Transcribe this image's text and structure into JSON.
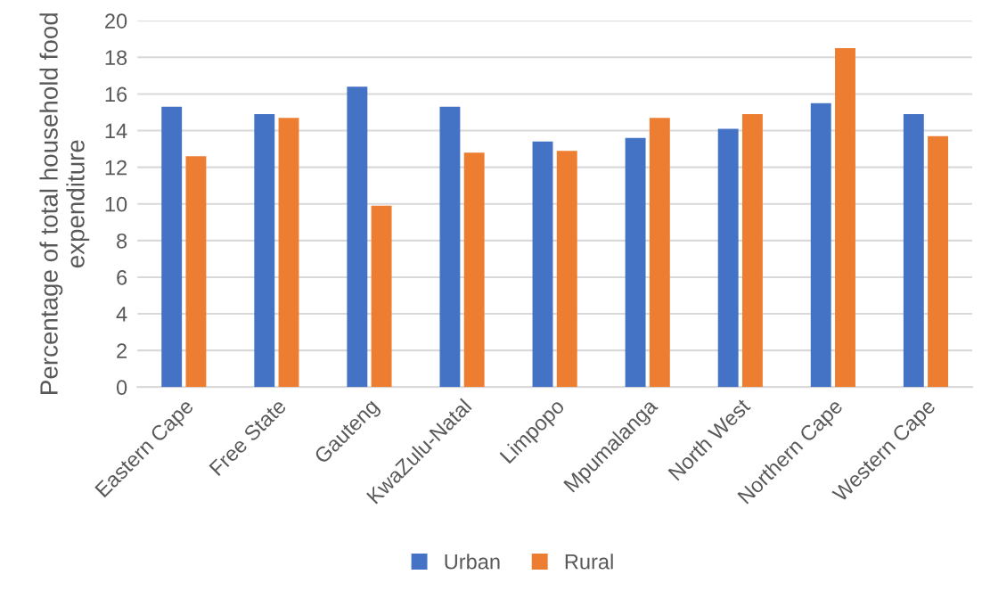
{
  "chart_data": {
    "type": "bar",
    "categories": [
      "Eastern Cape",
      "Free State",
      "Gauteng",
      "KwaZulu-Natal",
      "Limpopo",
      "Mpumalanga",
      "North West",
      "Northern Cape",
      "Western Cape"
    ],
    "ylabel": "Percentage of total household food expenditure",
    "series": [
      {
        "name": "Urban",
        "color": "#4472c4",
        "values": [
          15.3,
          14.9,
          16.4,
          15.3,
          13.4,
          13.6,
          14.1,
          15.5,
          14.9
        ]
      },
      {
        "name": "Rural",
        "color": "#ed7d31",
        "values": [
          12.6,
          14.7,
          9.9,
          12.8,
          12.9,
          14.7,
          14.9,
          18.5,
          13.7
        ]
      }
    ],
    "ylim": [
      0,
      20
    ],
    "yticks": [
      0,
      2,
      4,
      6,
      8,
      10,
      12,
      14,
      16,
      18,
      20
    ],
    "grid": "y",
    "legend": "bottom"
  }
}
